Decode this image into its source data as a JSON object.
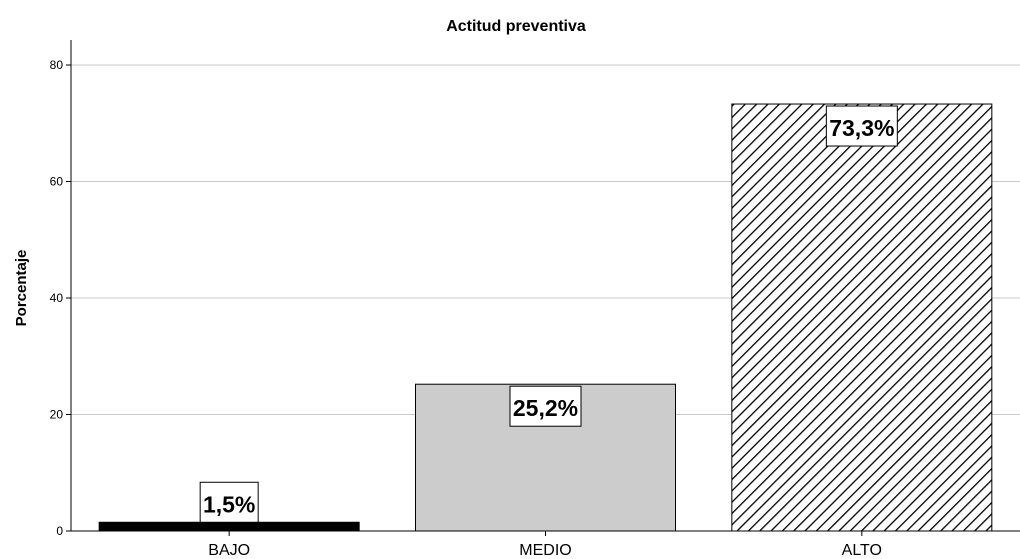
{
  "chart_data": {
    "type": "bar",
    "title": "Actitud preventiva",
    "xlabel": "",
    "ylabel": "Porcentaje",
    "ylim": [
      0,
      84
    ],
    "yticks": [
      0,
      20,
      40,
      60,
      80
    ],
    "grid": true,
    "categories": [
      "BAJO",
      "MEDIO",
      "ALTO"
    ],
    "values": [
      1.5,
      25.2,
      73.3
    ],
    "data_labels": [
      "1,5%",
      "25,2%",
      "73,3%"
    ],
    "fills": [
      "solid-black",
      "solid-gray",
      "diagonal-hatch"
    ],
    "colors": {
      "bar_black": "#000000",
      "bar_gray": "#cccccc",
      "grid": "#c8c8c8",
      "axis": "#000000"
    }
  }
}
